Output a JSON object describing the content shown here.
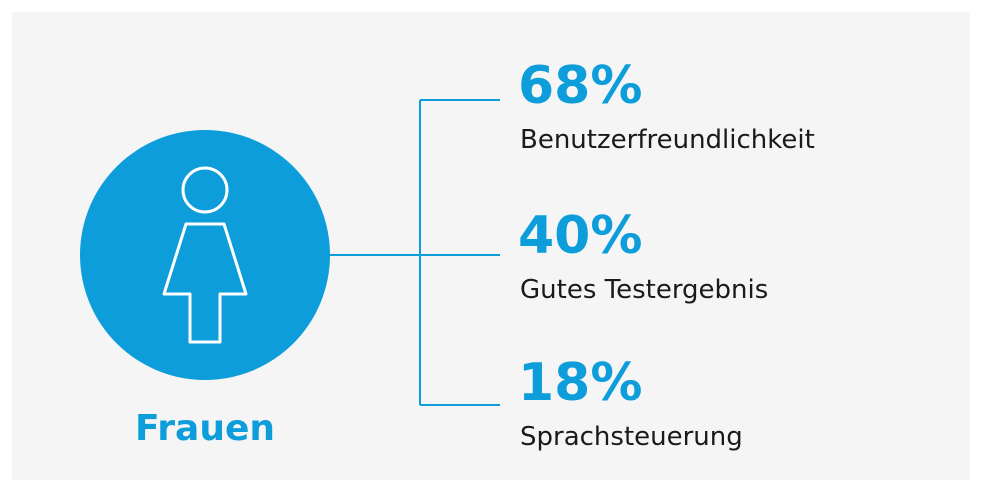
{
  "group": "Frauen",
  "items": [
    {
      "value": "68%",
      "label": "Benutzerfreundlichkeit"
    },
    {
      "value": "40%",
      "label": "Gutes Testergebnis"
    },
    {
      "value": "18%",
      "label": "Sprachsteuerung"
    }
  ]
}
